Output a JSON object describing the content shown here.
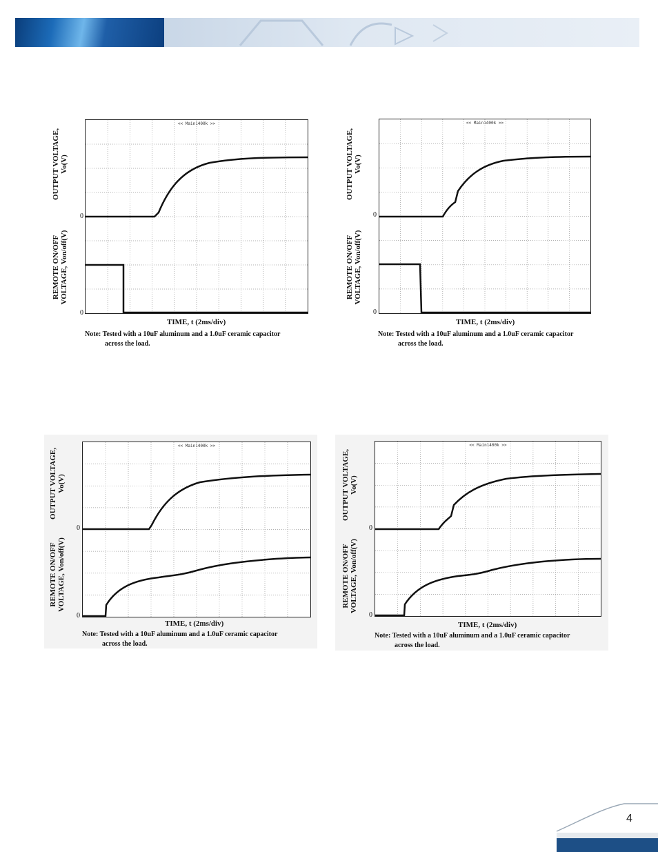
{
  "page_number": "4",
  "figures": [
    {
      "scope_title": "<< Main1400k >>",
      "ylabel_top": [
        "OUTPUT VOLTAGE,",
        "Vo(V)"
      ],
      "ylabel_bottom": [
        "REMOTE ON/OFF",
        "VOLTAGE, Von/off(V)"
      ],
      "zero_top": "0",
      "zero_bottom": "0",
      "xlabel": "TIME, t (2ms/div)",
      "note_line1": "Note: Tested with a 10uF aluminum and a 1.0uF ceramic capacitor",
      "note_line2": "across the load."
    },
    {
      "scope_title": "<< Main1400k >>",
      "ylabel_top": [
        "OUTPUT VOLTAGE,",
        "Vo(V)"
      ],
      "ylabel_bottom": [
        "REMOTE ON/OFF",
        "VOLTAGE, Von/off(V)"
      ],
      "zero_top": "0",
      "zero_bottom": "0",
      "xlabel": "TIME, t (2ms/div)",
      "note_line1": "Note: Tested with a 10uF aluminum and a 1.0uF ceramic capacitor",
      "note_line2": "across the load."
    },
    {
      "scope_title": "<< Main1400k >>",
      "ylabel_top": [
        "OUTPUT VOLTAGE,",
        "Vo(V)"
      ],
      "ylabel_bottom": [
        "REMOTE ON/OFF",
        "VOLTAGE, Von/off(V)"
      ],
      "zero_top": "0",
      "zero_bottom": "0",
      "xlabel": "TIME, t (2ms/div)",
      "note_line1": "Note: Tested with a 10uF aluminum and a 1.0uF ceramic capacitor",
      "note_line2": "across the load."
    },
    {
      "scope_title": "<< Main1400k >>",
      "ylabel_top": [
        "OUTPUT VOLTAGE,",
        "Vo(V)"
      ],
      "ylabel_bottom": [
        "REMOTE ON/OFF",
        "VOLTAGE, Von/off(V)"
      ],
      "zero_top": "0",
      "zero_bottom": "0",
      "xlabel": "TIME, t (2ms/div)",
      "note_line1": "Note: Tested with a 10uF aluminum and a 1.0uF ceramic capacitor",
      "note_line2": "across the load."
    }
  ]
}
